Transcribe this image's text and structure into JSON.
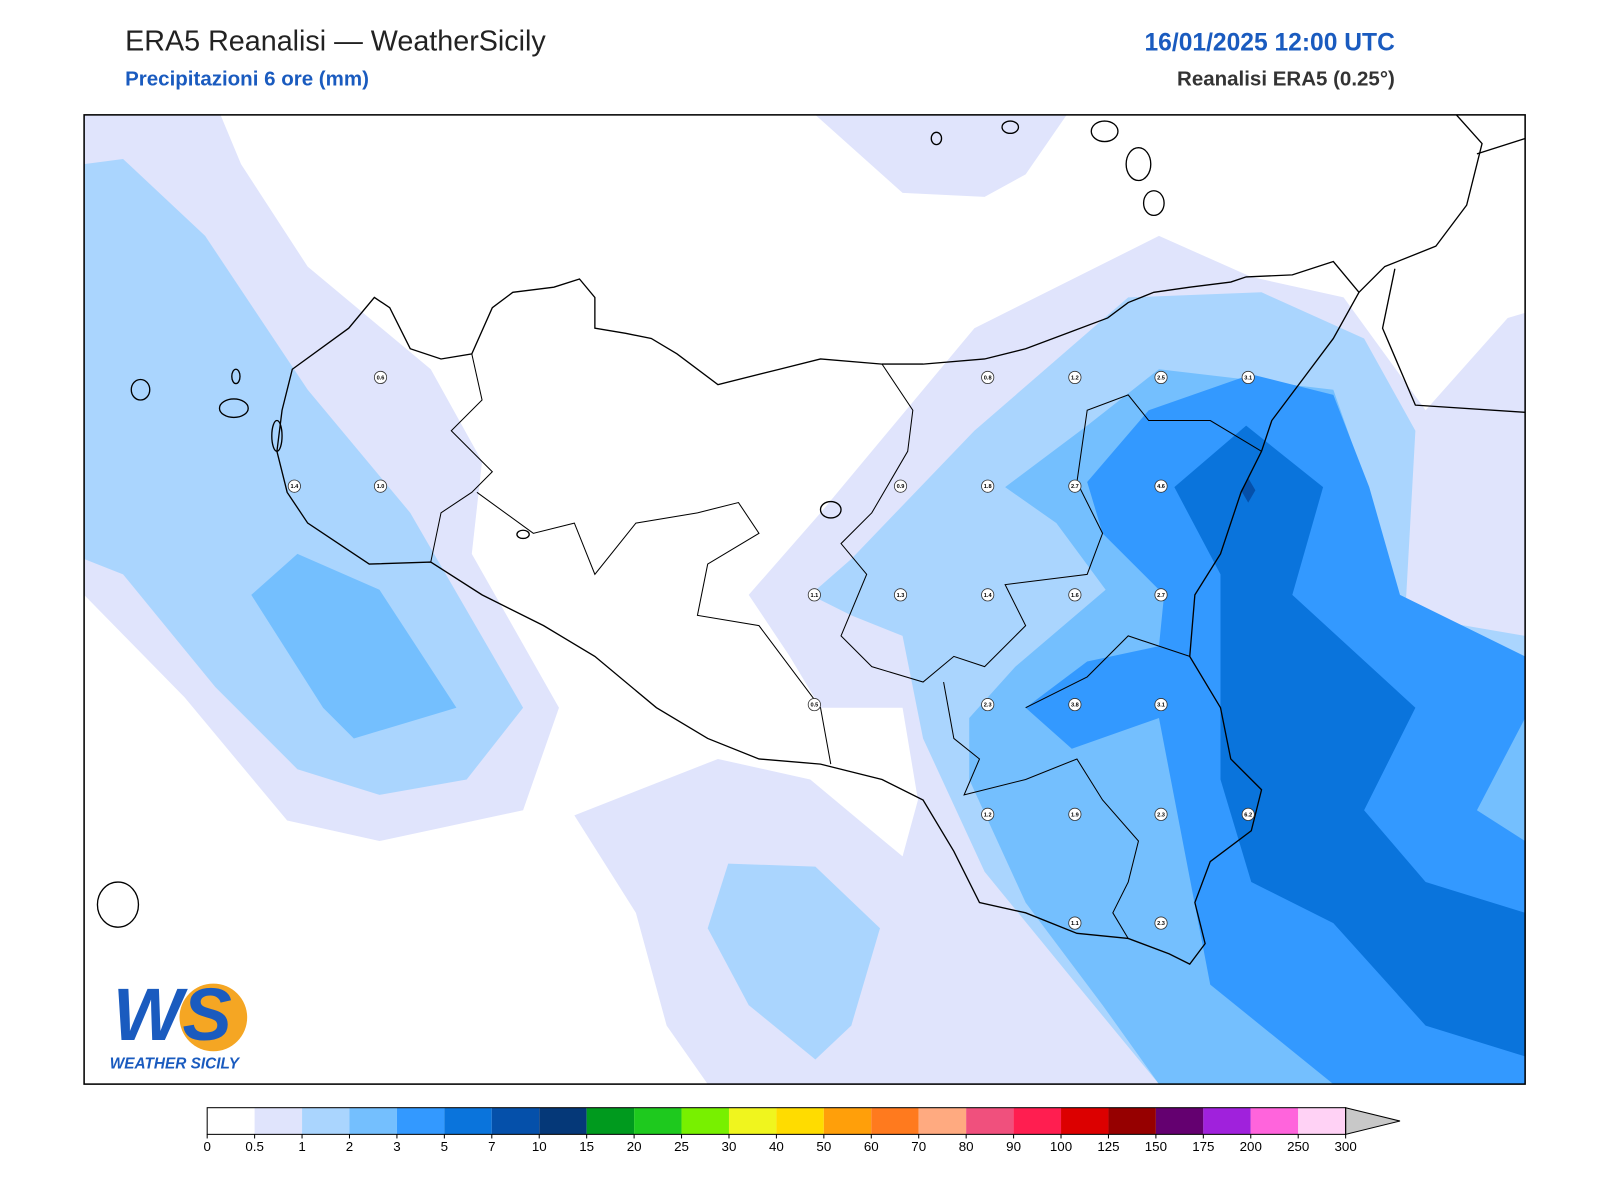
{
  "header": {
    "title": "ERA5 Reanalisi — WeatherSicily",
    "subtitle": "Precipitazioni 6 ore (mm)",
    "datetime": "16/01/2025 12:00 UTC",
    "source": "Reanalisi ERA5 (0.25°)"
  },
  "stations": [
    "0.6",
    "0.8",
    "1.2",
    "2.5",
    "3.1",
    "1.4",
    "1.0",
    "0.9",
    "1.8",
    "2.7",
    "4.6",
    "1.1",
    "1.3",
    "1.4",
    "1.6",
    "2.7",
    "0.5",
    "2.3",
    "3.8",
    "3.1",
    "1.2",
    "1.9",
    "2.3",
    "6.2",
    "1.1",
    "2.3"
  ],
  "colorbar": {
    "ticks": [
      "0",
      "0.5",
      "1",
      "2",
      "3",
      "5",
      "7",
      "10",
      "15",
      "20",
      "25",
      "30",
      "40",
      "50",
      "60",
      "70",
      "80",
      "90",
      "100",
      "125",
      "150",
      "175",
      "200",
      "250",
      "300"
    ],
    "colors": [
      "#ffffff",
      "#e0e4fc",
      "#aad5fe",
      "#74bffe",
      "#3399ff",
      "#0a74dc",
      "#0550aa",
      "#053878",
      "#009a1e",
      "#1ec91e",
      "#78f000",
      "#f0f51e",
      "#ffdc00",
      "#ff9f0a",
      "#ff7a1e",
      "#ffaa80",
      "#f0507d",
      "#ff1e50",
      "#dc0000",
      "#960000",
      "#640070",
      "#a021dc",
      "#ff64dc",
      "#ffd2f5"
    ],
    "overflow_color": "#c8c8c8"
  },
  "logo": {
    "mark": "WS",
    "name": "WEATHER SICILY"
  }
}
